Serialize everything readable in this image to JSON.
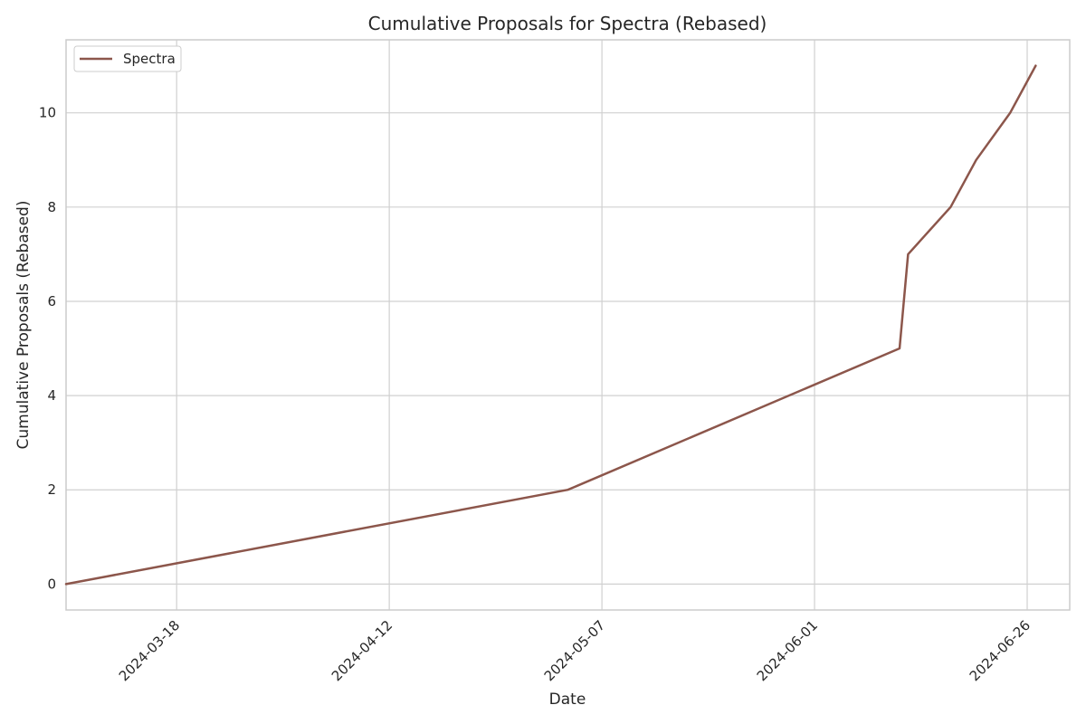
{
  "chart_data": {
    "type": "line",
    "title": "Cumulative Proposals for Spectra (Rebased)",
    "xlabel": "Date",
    "ylabel": "Cumulative Proposals (Rebased)",
    "x_ticks": [
      "2024-03-18",
      "2024-04-12",
      "2024-05-07",
      "2024-06-01",
      "2024-06-26"
    ],
    "y_ticks": [
      0,
      2,
      4,
      6,
      8,
      10
    ],
    "xlim": [
      "2024-03-05",
      "2024-07-01"
    ],
    "ylim": [
      -0.55,
      11.55
    ],
    "grid": true,
    "legend": "top-left",
    "series": [
      {
        "name": "Spectra",
        "color": "#8c564b",
        "points": [
          {
            "x": "2024-03-05",
            "y": 0
          },
          {
            "x": "2024-05-03",
            "y": 2
          },
          {
            "x": "2024-06-11",
            "y": 5
          },
          {
            "x": "2024-06-12",
            "y": 7
          },
          {
            "x": "2024-06-17",
            "y": 8
          },
          {
            "x": "2024-06-20",
            "y": 9
          },
          {
            "x": "2024-06-24",
            "y": 10
          },
          {
            "x": "2024-06-27",
            "y": 11
          }
        ]
      }
    ]
  }
}
